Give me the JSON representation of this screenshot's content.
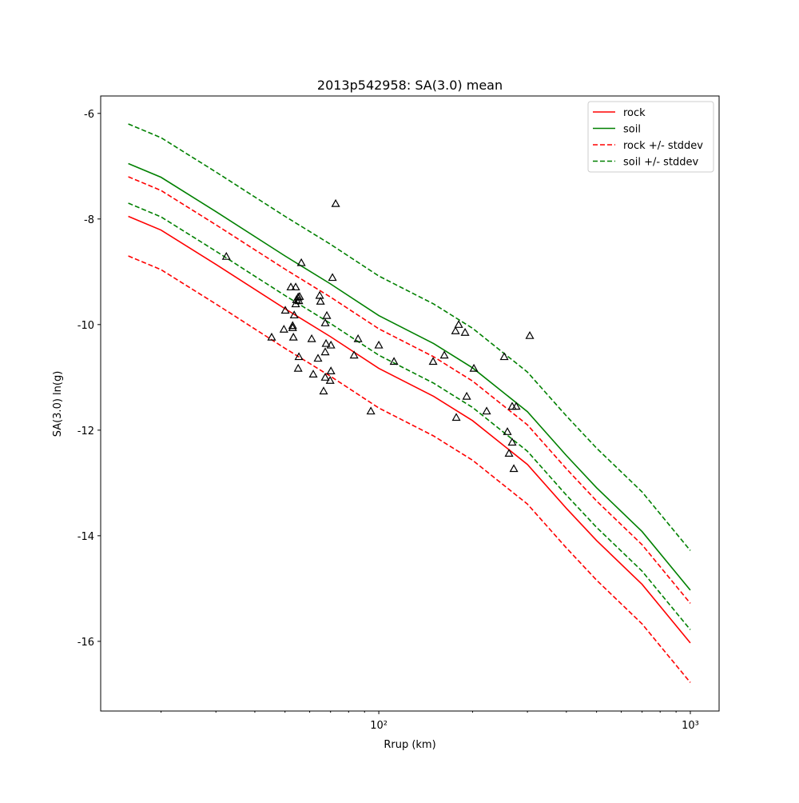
{
  "chart_data": {
    "type": "line",
    "title": "2013p542958: SA(3.0) mean",
    "xlabel": "Rrup (km)",
    "ylabel": "SA(3.0) ln(g)",
    "xscale": "log",
    "xlim": [
      12.8,
      1237
    ],
    "ylim": [
      -17.32,
      -5.67
    ],
    "xticks": [
      {
        "value": 100,
        "label": "10²"
      },
      {
        "value": 1000,
        "label": "10³"
      }
    ],
    "xminorticks": [
      20,
      30,
      40,
      50,
      60,
      70,
      80,
      90,
      200,
      300,
      400,
      500,
      600,
      700,
      800,
      900
    ],
    "yticks": [
      -16,
      -14,
      -12,
      -10,
      -8,
      -6
    ],
    "legend": "upper right",
    "x": [
      15.7,
      20,
      30,
      50,
      70,
      100,
      150,
      200,
      300,
      400,
      500,
      700,
      1000
    ],
    "series": [
      {
        "name": "rock",
        "color": "#ff0000",
        "dashed": false,
        "values": [
          -7.95,
          -8.21,
          -8.86,
          -9.7,
          -10.23,
          -10.83,
          -11.36,
          -11.82,
          -12.65,
          -13.48,
          -14.09,
          -14.92,
          -16.03
        ]
      },
      {
        "name": "soil",
        "color": "#008000",
        "dashed": false,
        "values": [
          -6.95,
          -7.21,
          -7.86,
          -8.7,
          -9.23,
          -9.83,
          -10.36,
          -10.82,
          -11.65,
          -12.48,
          -13.09,
          -13.92,
          -15.03
        ]
      },
      {
        "name": "rock +/- stddev",
        "color": "#ff0000",
        "dashed": true,
        "values": [
          -7.2,
          -7.46,
          -8.11,
          -8.95,
          -9.48,
          -10.08,
          -10.61,
          -11.07,
          -11.9,
          -12.73,
          -13.34,
          -14.17,
          -15.28
        ],
        "lower": [
          -8.7,
          -8.96,
          -9.61,
          -10.45,
          -10.98,
          -11.58,
          -12.11,
          -12.57,
          -13.4,
          -14.23,
          -14.84,
          -15.67,
          -16.78
        ]
      },
      {
        "name": "soil +/- stddev",
        "color": "#008000",
        "dashed": true,
        "values": [
          -6.2,
          -6.46,
          -7.11,
          -7.95,
          -8.48,
          -9.08,
          -9.61,
          -10.07,
          -10.9,
          -11.73,
          -12.34,
          -13.17,
          -14.28
        ],
        "lower": [
          -7.7,
          -7.96,
          -8.61,
          -9.45,
          -9.98,
          -10.58,
          -11.11,
          -11.57,
          -12.4,
          -13.23,
          -13.84,
          -14.67,
          -15.78
        ]
      }
    ],
    "observations": {
      "color": "#000000",
      "x": [
        32.4,
        72.7,
        45.3,
        49.6,
        50.1,
        52.2,
        54.1,
        52.9,
        53.2,
        53.5,
        54.1,
        54.4,
        55.1,
        55.4,
        55.7,
        56.4,
        55.4,
        55.1,
        52.9,
        60.9,
        61.6,
        63.8,
        64.6,
        65.0,
        67.3,
        68.1,
        67.3,
        67.7,
        67.3,
        66.5,
        70.2,
        70.2,
        69.8,
        71.0,
        83.3,
        85.8,
        94.3,
        100,
        111.9,
        149.4,
        162.3,
        176.3,
        180.5,
        189.2,
        177.3,
        191.5,
        201.9,
        221.9,
        252.7,
        258.7,
        261.8,
        268.0,
        268.0,
        276.1,
        271.3,
        305.2
      ],
      "y": [
        -8.71,
        -7.71,
        -10.24,
        -10.09,
        -9.73,
        -9.29,
        -9.29,
        -10.02,
        -10.24,
        -9.82,
        -9.61,
        -9.53,
        -9.48,
        -9.55,
        -9.47,
        -8.83,
        -10.61,
        -10.83,
        -10.06,
        -10.27,
        -10.94,
        -10.64,
        -9.45,
        -9.56,
        -9.97,
        -9.83,
        -10.52,
        -10.36,
        -11.0,
        -11.26,
        -10.39,
        -10.88,
        -11.06,
        -9.11,
        -10.58,
        -10.27,
        -11.64,
        -10.39,
        -10.7,
        -10.7,
        -10.58,
        -10.12,
        -10.0,
        -10.15,
        -11.76,
        -11.36,
        -10.83,
        -11.64,
        -10.61,
        -12.03,
        -12.44,
        -12.23,
        -11.55,
        -11.55,
        -12.73,
        -10.21
      ]
    }
  }
}
